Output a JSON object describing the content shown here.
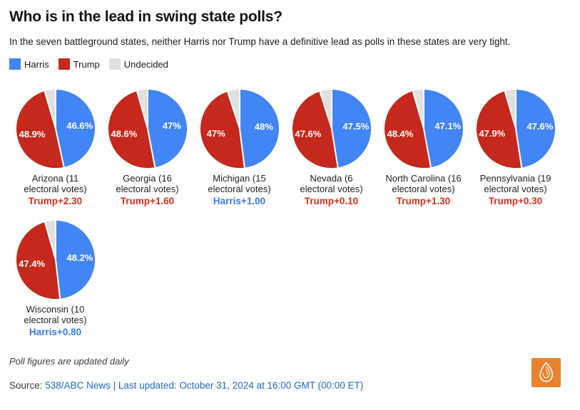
{
  "header": {
    "title": "Who is in the lead in swing state polls?",
    "subtitle": "In the seven battleground states, neither Harris nor Trump have a definitive lead as polls in these states are very tight."
  },
  "legend": {
    "items": [
      {
        "label": "Harris",
        "color": "#4285F4"
      },
      {
        "label": "Trump",
        "color": "#C5281C"
      },
      {
        "label": "Undecided",
        "color": "#E0E0E0"
      }
    ]
  },
  "colors": {
    "harris_slice": "#4285F4",
    "trump_slice": "#C5281C",
    "undecided_slice": "#E0E0E0",
    "harris_lead_text": "#3D79E2",
    "trump_lead_text": "#DA2E1E",
    "logo_orange": "#E8822C"
  },
  "chart_data": [
    {
      "type": "pie",
      "name_lines": [
        "Arizona (11",
        "electoral votes)"
      ],
      "lead": "Trump+2.30",
      "leader": "trump",
      "slices": [
        {
          "name": "Harris",
          "value": 46.6,
          "label": "46.6%"
        },
        {
          "name": "Trump",
          "value": 48.9,
          "label": "48.9%"
        },
        {
          "name": "Undecided",
          "value": 4.5,
          "label": ""
        }
      ]
    },
    {
      "type": "pie",
      "name_lines": [
        "Georgia (16",
        "electoral votes)"
      ],
      "lead": "Trump+1.60",
      "leader": "trump",
      "slices": [
        {
          "name": "Harris",
          "value": 47,
          "label": "47%"
        },
        {
          "name": "Trump",
          "value": 48.6,
          "label": "48.6%"
        },
        {
          "name": "Undecided",
          "value": 4.4,
          "label": ""
        }
      ]
    },
    {
      "type": "pie",
      "name_lines": [
        "Michigan (15",
        "electoral votes)"
      ],
      "lead": "Harris+1.00",
      "leader": "harris",
      "slices": [
        {
          "name": "Harris",
          "value": 48,
          "label": "48%"
        },
        {
          "name": "Trump",
          "value": 47,
          "label": "47%"
        },
        {
          "name": "Undecided",
          "value": 5.0,
          "label": ""
        }
      ]
    },
    {
      "type": "pie",
      "name_lines": [
        "Nevada (6",
        "electoral votes)"
      ],
      "lead": "Trump+0.10",
      "leader": "trump",
      "slices": [
        {
          "name": "Harris",
          "value": 47.5,
          "label": "47.5%"
        },
        {
          "name": "Trump",
          "value": 47.6,
          "label": "47.6%"
        },
        {
          "name": "Undecided",
          "value": 4.9,
          "label": ""
        }
      ]
    },
    {
      "type": "pie",
      "name_lines": [
        "North Carolina (16",
        "electoral votes)"
      ],
      "lead": "Trump+1.30",
      "leader": "trump",
      "slices": [
        {
          "name": "Harris",
          "value": 47.1,
          "label": "47.1%"
        },
        {
          "name": "Trump",
          "value": 48.4,
          "label": "48.4%"
        },
        {
          "name": "Undecided",
          "value": 4.5,
          "label": ""
        }
      ]
    },
    {
      "type": "pie",
      "name_lines": [
        "Pennsylvania (19",
        "electoral votes)"
      ],
      "lead": "Trump+0.30",
      "leader": "trump",
      "slices": [
        {
          "name": "Harris",
          "value": 47.6,
          "label": "47.6%"
        },
        {
          "name": "Trump",
          "value": 47.9,
          "label": "47.9%"
        },
        {
          "name": "Undecided",
          "value": 4.5,
          "label": ""
        }
      ]
    },
    {
      "type": "pie",
      "name_lines": [
        "Wisconsin (10",
        "electoral votes)"
      ],
      "lead": "Harris+0.80",
      "leader": "harris",
      "slices": [
        {
          "name": "Harris",
          "value": 48.2,
          "label": "48.2%"
        },
        {
          "name": "Trump",
          "value": 47.4,
          "label": "47.4%"
        },
        {
          "name": "Undecided",
          "value": 4.4,
          "label": ""
        }
      ]
    }
  ],
  "footer": {
    "note": "Poll figures are updated daily",
    "source_prefix": "Source: ",
    "source_link": "538/ABC News | Last updated: October 31, 2024 at 16:00 GMT (00:00 ET)"
  }
}
